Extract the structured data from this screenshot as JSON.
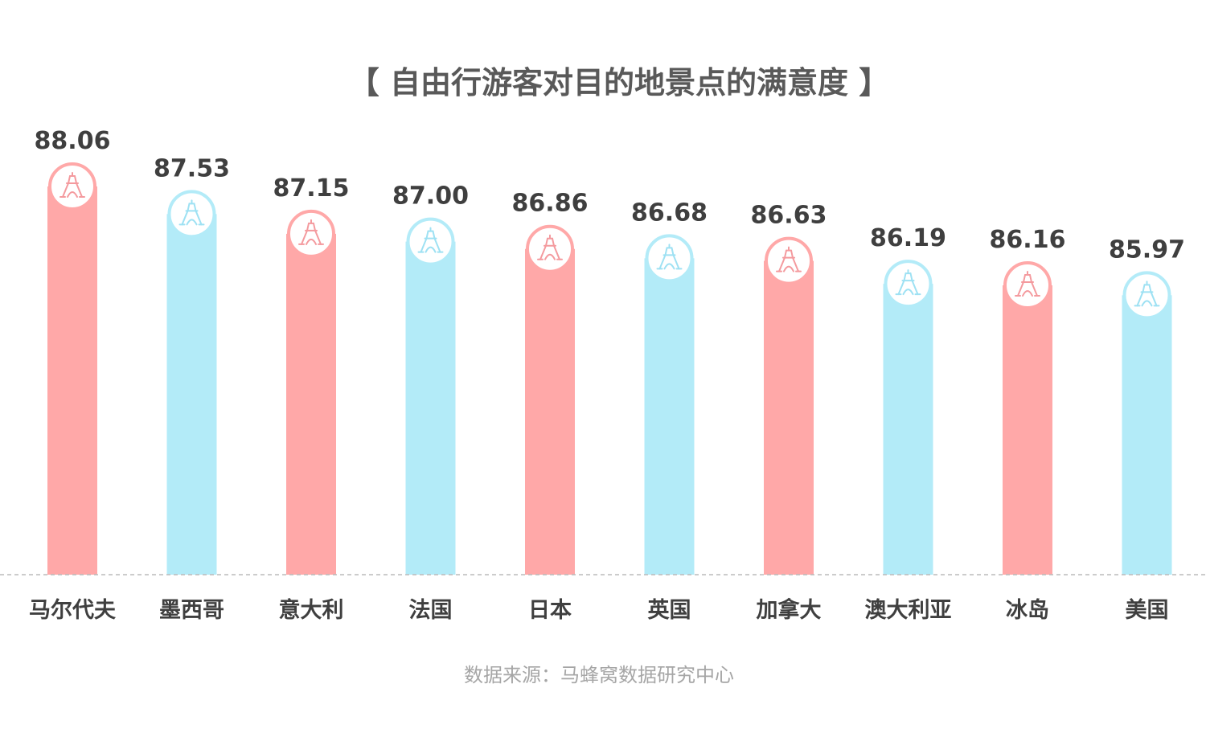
{
  "chart_data": {
    "type": "bar",
    "title": "【 自由行游客对目的地景点的满意度 】",
    "xlabel": "",
    "ylabel": "",
    "categories": [
      "马尔代夫",
      "墨西哥",
      "意大利",
      "法国",
      "日本",
      "英国",
      "加拿大",
      "澳大利亚",
      "冰岛",
      "美国"
    ],
    "values": [
      88.06,
      87.53,
      87.15,
      87.0,
      86.86,
      86.68,
      86.63,
      86.19,
      86.16,
      85.97
    ],
    "value_labels": [
      "88.06",
      "87.53",
      "87.15",
      "87.00",
      "86.86",
      "86.68",
      "86.63",
      "86.19",
      "86.16",
      "85.97"
    ],
    "ylim": [
      80.6,
      88.06
    ],
    "grid": false,
    "legend": "none",
    "bar_icon": "eiffel-tower-icon",
    "colors": {
      "pink": "#ffa8a8",
      "pink_stroke": "#f49a9e",
      "blue": "#b3ebf8",
      "blue_stroke": "#9ee1f3",
      "baseline": "#bbbbbb",
      "label": "#3f3f3f"
    },
    "bar_color_pattern": [
      "pink",
      "blue"
    ]
  },
  "source": "数据来源：马蜂窝数据研究中心"
}
